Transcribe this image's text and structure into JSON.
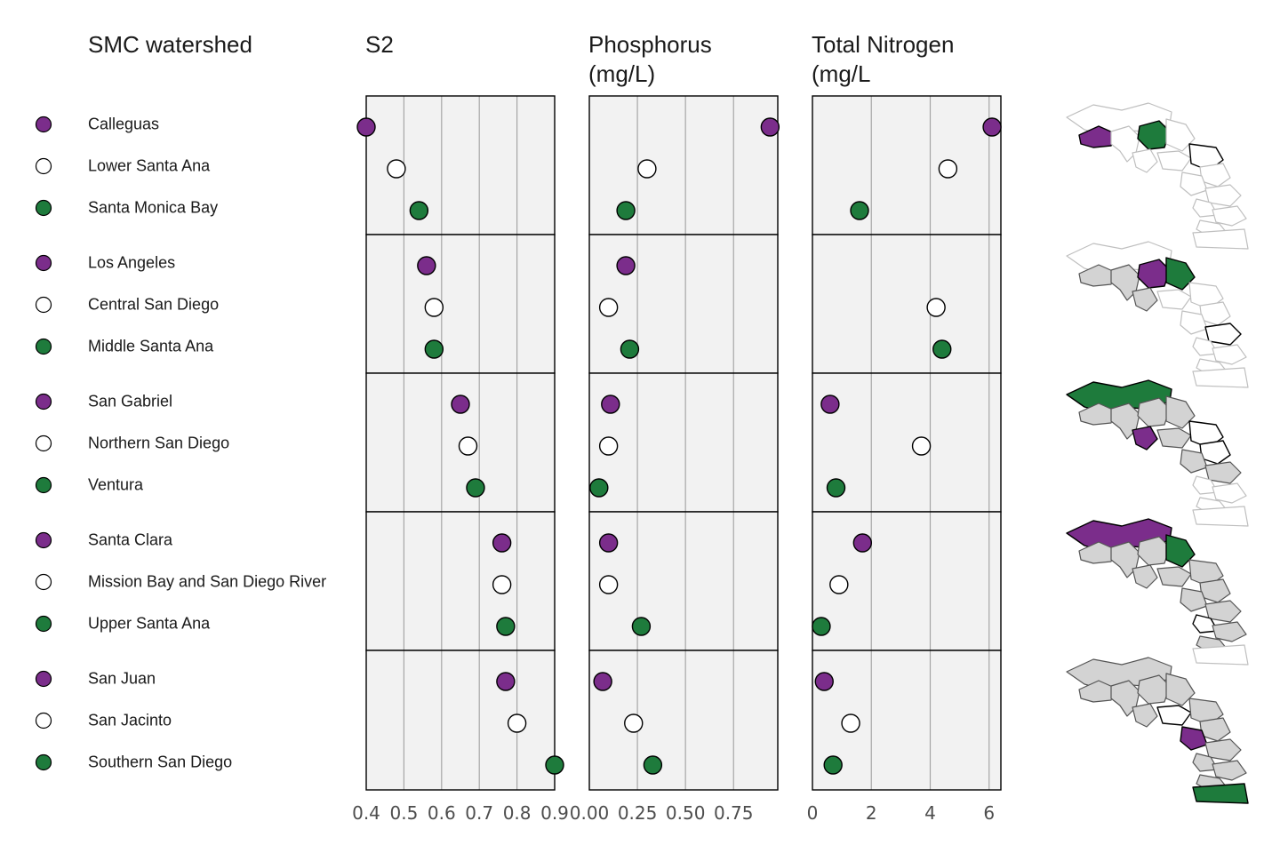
{
  "headers": {
    "watershed": "SMC watershed",
    "s2": "S2",
    "phosphorus_line1": "Phosphorus",
    "phosphorus_line2": "(mg/L)",
    "nitrogen_line1": "Total Nitrogen",
    "nitrogen_line2": "(mg/L"
  },
  "colors": {
    "purple": "#7b2d8b",
    "white": "#ffffff",
    "green": "#1e7b3c",
    "panel_bg": "#f2f2f2",
    "grid": "#a6a6a6",
    "map_grey": "#d3d3d3",
    "map_outline": "#bfbfbf"
  },
  "rows": [
    {
      "name": "Calleguas",
      "color": "purple"
    },
    {
      "name": "Lower Santa Ana",
      "color": "white"
    },
    {
      "name": "Santa Monica Bay",
      "color": "green"
    },
    {
      "name": "Los Angeles",
      "color": "purple"
    },
    {
      "name": "Central San Diego",
      "color": "white"
    },
    {
      "name": "Middle Santa Ana",
      "color": "green"
    },
    {
      "name": "San Gabriel",
      "color": "purple"
    },
    {
      "name": "Northern San Diego",
      "color": "white"
    },
    {
      "name": "Ventura",
      "color": "green"
    },
    {
      "name": "Santa Clara",
      "color": "purple"
    },
    {
      "name": "Mission Bay and San Diego River",
      "color": "white"
    },
    {
      "name": "Upper Santa Ana",
      "color": "green"
    },
    {
      "name": "San Juan",
      "color": "purple"
    },
    {
      "name": "San Jacinto",
      "color": "white"
    },
    {
      "name": "Southern San Diego",
      "color": "green"
    }
  ],
  "chart_data": [
    {
      "type": "scatter",
      "title": "S2",
      "xlabel": "",
      "ylabel": "",
      "xlim": [
        0.4,
        0.9
      ],
      "xticks": [
        0.4,
        0.5,
        0.6,
        0.7,
        0.8,
        0.9
      ],
      "tick_labels": [
        "0.4",
        "0.5",
        "0.6",
        "0.7",
        "0.8",
        "0.9"
      ],
      "grid": true,
      "values": [
        0.4,
        0.48,
        0.54,
        0.56,
        0.58,
        0.58,
        0.65,
        0.67,
        0.69,
        0.76,
        0.76,
        0.77,
        0.77,
        0.8,
        0.9
      ]
    },
    {
      "type": "scatter",
      "title": "Phosphorus (mg/L)",
      "xlabel": "",
      "ylabel": "",
      "xlim": [
        0.0,
        0.98
      ],
      "xticks": [
        0.0,
        0.25,
        0.5,
        0.75
      ],
      "tick_labels": [
        "0.00",
        "0.25",
        "0.50",
        "0.75"
      ],
      "grid": true,
      "values": [
        0.94,
        0.3,
        0.19,
        0.19,
        0.1,
        0.21,
        0.11,
        0.1,
        0.05,
        0.1,
        0.1,
        0.27,
        0.07,
        0.23,
        0.33
      ]
    },
    {
      "type": "scatter",
      "title": "Total Nitrogen (mg/L",
      "xlabel": "",
      "ylabel": "",
      "xlim": [
        0.0,
        6.4
      ],
      "xticks": [
        0,
        2,
        4,
        6
      ],
      "tick_labels": [
        "0",
        "2",
        "4",
        "6"
      ],
      "grid": true,
      "values": [
        6.1,
        4.6,
        1.6,
        null,
        4.2,
        4.4,
        0.6,
        3.7,
        0.8,
        1.7,
        0.9,
        0.3,
        0.4,
        1.3,
        0.7
      ]
    }
  ]
}
